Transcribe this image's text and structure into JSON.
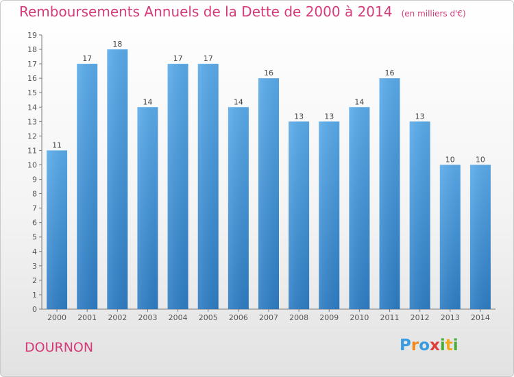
{
  "header": {
    "title": "Remboursements Annuels de la Dette de 2000 à 2014",
    "unit": "(en milliers d'€)"
  },
  "commune": "DOURNON",
  "logo": {
    "letters": [
      "P",
      "r",
      "o",
      "x",
      "i",
      "t",
      "i"
    ],
    "colors": [
      "#3a9be0",
      "#f08a1e",
      "#3a9be0",
      "#e03c3c",
      "#4caf3c",
      "#f0a81e",
      "#4caf3c"
    ]
  },
  "chart_data": {
    "type": "bar",
    "title": "Remboursements Annuels de la Dette de 2000 à 2014",
    "categories": [
      "2000",
      "2001",
      "2002",
      "2003",
      "2004",
      "2005",
      "2006",
      "2007",
      "2008",
      "2009",
      "2010",
      "2011",
      "2012",
      "2013",
      "2014"
    ],
    "values": [
      11,
      17,
      18,
      14,
      17,
      17,
      14,
      16,
      13,
      13,
      14,
      16,
      13,
      10,
      10
    ],
    "ylim": [
      0,
      19
    ],
    "yticks": [
      0,
      1,
      2,
      3,
      4,
      5,
      6,
      7,
      8,
      9,
      10,
      11,
      12,
      13,
      14,
      15,
      16,
      17,
      18,
      19
    ],
    "grid": false,
    "bar_color_top": "#5aabea",
    "bar_color_bottom": "#2e7dc4"
  }
}
